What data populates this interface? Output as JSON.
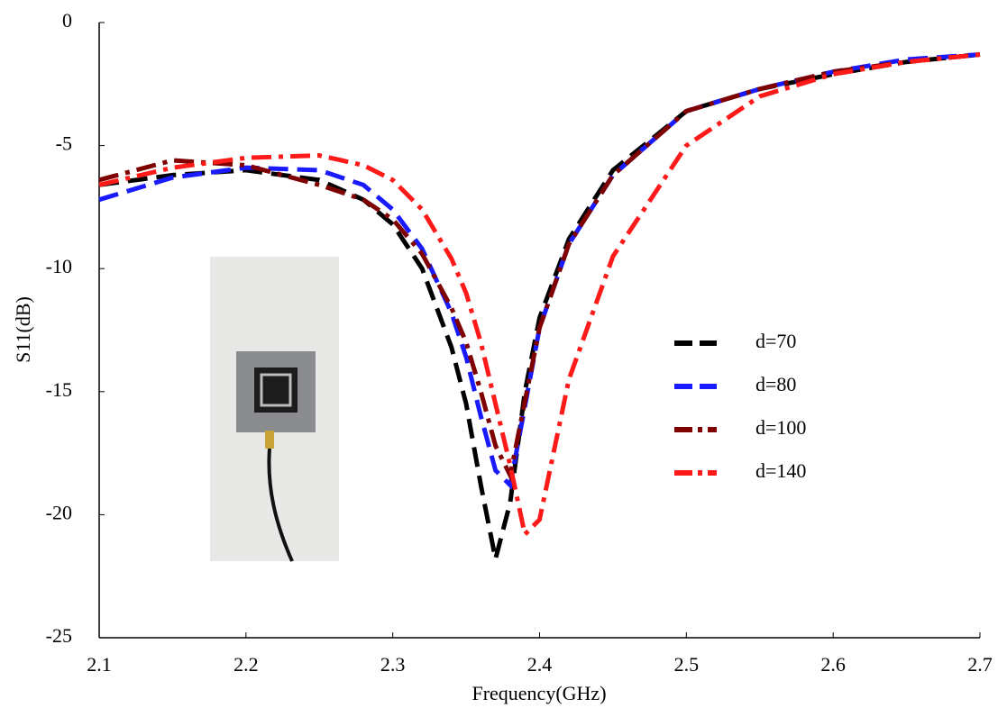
{
  "chart_data": {
    "type": "line",
    "xlabel": "Frequency(GHz)",
    "ylabel": "S11(dB)",
    "x": [
      2.1,
      2.15,
      2.2,
      2.25,
      2.28,
      2.3,
      2.32,
      2.34,
      2.35,
      2.36,
      2.37,
      2.38,
      2.39,
      2.4,
      2.42,
      2.45,
      2.5,
      2.55,
      2.6,
      2.65,
      2.7
    ],
    "series": [
      {
        "name": "d=70",
        "color": "#000000",
        "style": "dash",
        "values": [
          -6.6,
          -6.2,
          -6.0,
          -6.4,
          -7.2,
          -8.2,
          -10.0,
          -13.2,
          -15.5,
          -18.8,
          -21.8,
          -19.5,
          -15.0,
          -12.0,
          -8.8,
          -6.0,
          -3.6,
          -2.7,
          -2.1,
          -1.6,
          -1.3
        ]
      },
      {
        "name": "d=80",
        "color": "#1a1aff",
        "style": "dash",
        "values": [
          -7.2,
          -6.3,
          -5.9,
          -6.0,
          -6.6,
          -7.6,
          -9.2,
          -11.8,
          -13.6,
          -16.0,
          -18.2,
          -18.8,
          -15.6,
          -12.4,
          -9.0,
          -6.2,
          -3.6,
          -2.7,
          -2.0,
          -1.5,
          -1.3
        ]
      },
      {
        "name": "d=100",
        "color": "#7f0000",
        "style": "dashdot",
        "values": [
          -6.4,
          -5.6,
          -5.8,
          -6.6,
          -7.2,
          -8.0,
          -9.4,
          -11.6,
          -13.0,
          -15.0,
          -17.2,
          -18.4,
          -15.4,
          -12.4,
          -9.0,
          -6.2,
          -3.6,
          -2.7,
          -2.0,
          -1.6,
          -1.3
        ]
      },
      {
        "name": "d=140",
        "color": "#ff1a1a",
        "style": "dashdot",
        "values": [
          -6.6,
          -5.9,
          -5.5,
          -5.4,
          -5.8,
          -6.4,
          -7.6,
          -9.6,
          -11.0,
          -13.0,
          -15.5,
          -18.0,
          -20.8,
          -20.2,
          -14.5,
          -9.5,
          -5.0,
          -3.0,
          -2.1,
          -1.6,
          -1.3
        ]
      }
    ],
    "xlim": [
      2.1,
      2.7
    ],
    "xticks": [
      2.1,
      2.2,
      2.3,
      2.4,
      2.5,
      2.6,
      2.7
    ],
    "ylim": [
      -25,
      0
    ],
    "yticks": [
      -25,
      -20,
      -15,
      -10,
      -5,
      0
    ],
    "grid": false,
    "legend": "right"
  }
}
